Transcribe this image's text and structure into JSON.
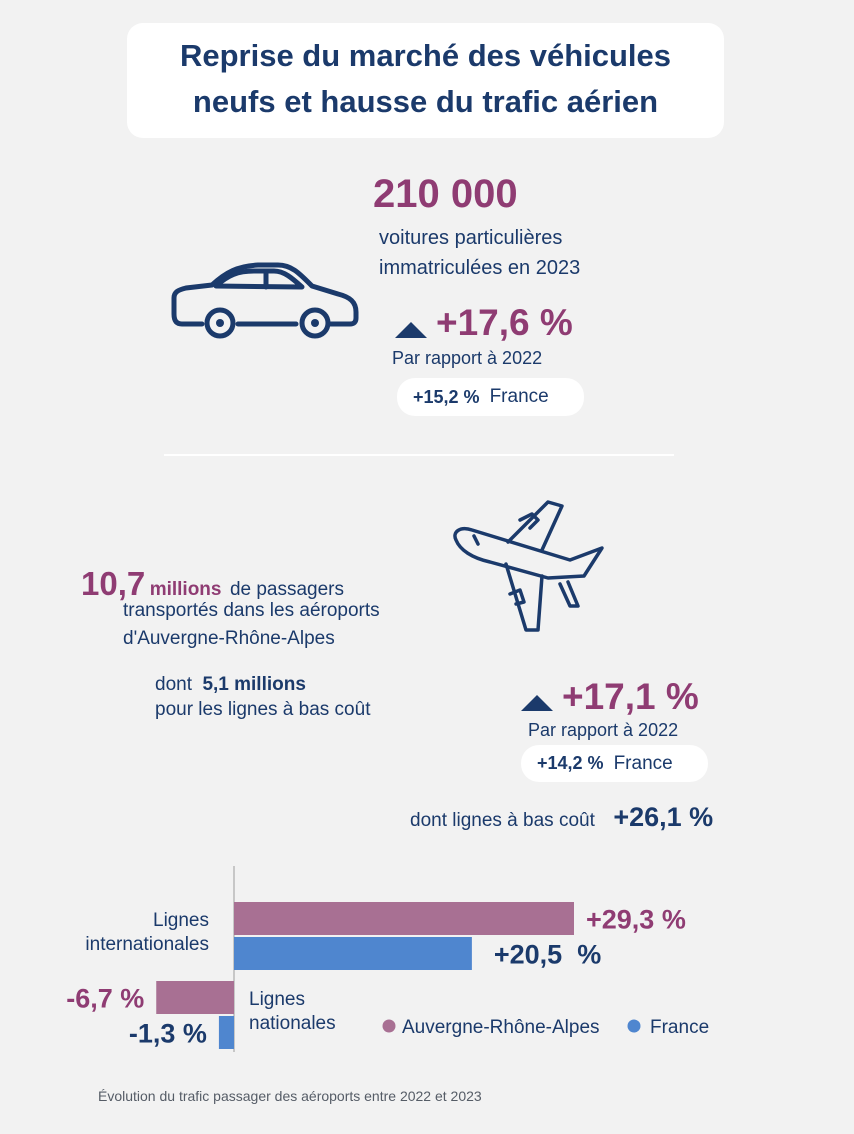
{
  "title": {
    "line1": "Reprise du marché des véhicules",
    "line2": "neufs et hausse du trafic aérien"
  },
  "cars": {
    "count": "210 000",
    "desc_line1": "voitures particulières",
    "desc_line2": "immatriculées en 2023",
    "change": "+17,6 %",
    "change_ref": "Par rapport à 2022",
    "france_value": "+15,2 %",
    "france_label": "France",
    "icon": "car-icon"
  },
  "air": {
    "icon": "airplane-icon",
    "passengers_num": "10,7",
    "passengers_unit": "millions",
    "passengers_text1": "de passagers",
    "passengers_text2": "transportés dans les aéroports",
    "passengers_text3": "d'Auvergne-Rhône-Alpes",
    "lowcost_prefix": "dont",
    "lowcost_value": "5,1 millions",
    "lowcost_text": "pour les lignes à bas coût",
    "change": "+17,1 %",
    "change_ref": "Par rapport à 2022",
    "france_value": "+14,2 %",
    "france_label": "France",
    "lowcost_growth_label": "dont lignes à bas coût",
    "lowcost_growth_value": "+26,1 %"
  },
  "chart_data": {
    "type": "bar",
    "orientation": "horizontal",
    "categories": [
      "Lignes internationales",
      "Lignes nationales"
    ],
    "series": [
      {
        "name": "Auvergne-Rhône-Alpes",
        "values": [
          29.3,
          -6.7
        ],
        "labels": [
          "+29,3 %",
          "-6,7 %"
        ],
        "color": "#a87093"
      },
      {
        "name": "France",
        "values": [
          20.5,
          -1.3
        ],
        "labels": [
          "+20,5  %",
          "-1,3 %"
        ],
        "color": "#4f86cf"
      }
    ],
    "legend_position": "bottom-right",
    "grid": false
  },
  "chart_text": {
    "cat1_line1": "Lignes",
    "cat1_line2": "internationales",
    "cat2_line1": "Lignes",
    "cat2_line2": "nationales"
  },
  "caption": "Évolution du trafic passager des aéroports entre 2022 et 2023",
  "colors": {
    "navy": "#1b3a6b",
    "plum": "#8f3c73",
    "bar_region": "#a87093",
    "bar_france": "#4f86cf",
    "background": "#f2f2f2"
  }
}
